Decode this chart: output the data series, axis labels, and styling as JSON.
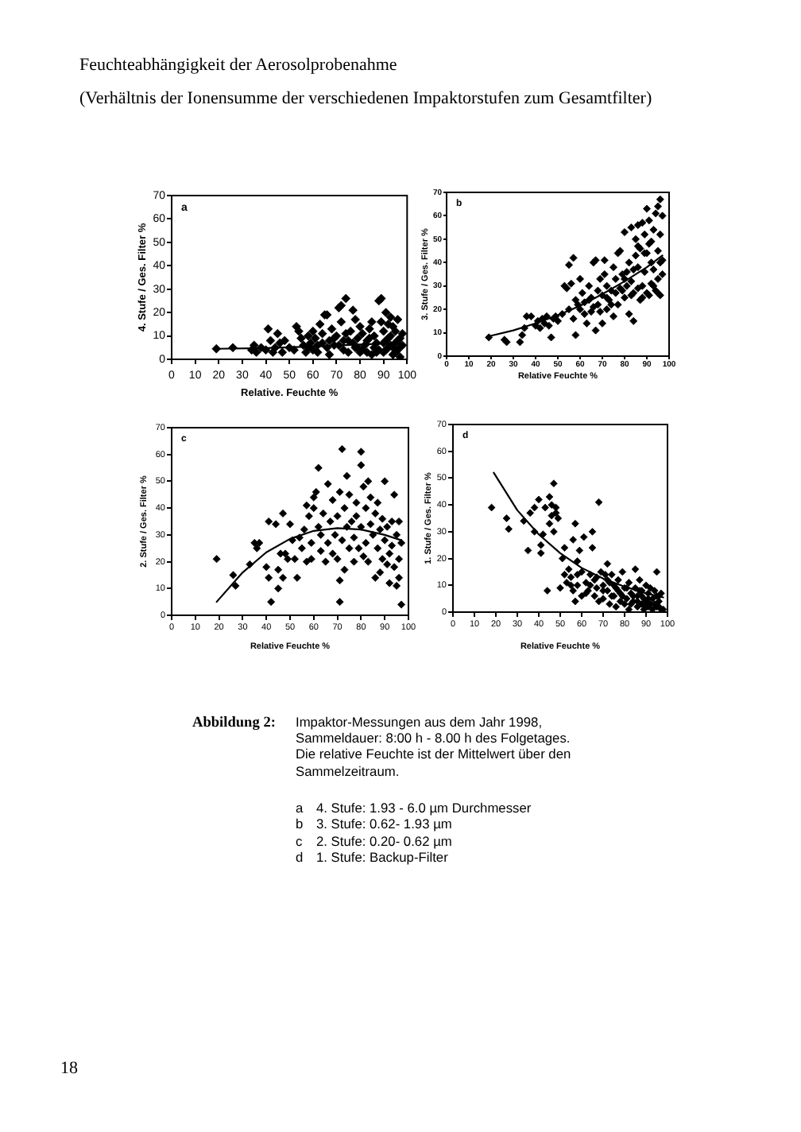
{
  "chart_data": [
    {
      "type": "scatter",
      "title": "Feuchteabhängigkeit der Aerosolprobenahme",
      "subtitle": "(Verhältnis der Ionensumme der verschiedenen Impaktorstufen zum Gesamtfilter)",
      "xlabel": "Relative. Feuchte %",
      "ylabel": "4. Stufe / Ges. Filter %",
      "annotations": [
        "a",
        "4. Stufe: 1.93 - 6.0 µm Durchmesser"
      ],
      "series": [
        {
          "color": "#000000",
          "x": [
            19,
            26,
            34,
            35,
            36,
            38,
            40,
            41,
            42,
            43,
            44,
            45,
            46,
            47,
            48,
            50,
            52,
            53,
            54,
            55,
            56,
            57,
            58,
            59,
            60,
            60,
            61,
            62,
            63,
            64,
            65,
            66,
            66,
            67,
            68,
            69,
            70,
            71,
            72,
            72,
            73,
            74,
            74,
            75,
            76,
            77,
            78,
            78,
            79,
            80,
            80,
            81,
            82,
            83,
            84,
            85,
            85,
            86,
            87,
            88,
            88,
            89,
            89,
            90,
            90,
            91,
            91,
            92,
            92,
            93,
            93,
            94,
            94,
            95,
            95,
            96,
            96,
            97,
            97,
            98,
            98,
            58,
            62,
            64,
            67,
            69,
            71,
            73,
            75,
            77,
            79,
            81,
            83,
            84,
            86,
            87,
            90,
            91,
            92,
            93,
            94,
            95,
            96,
            97
          ],
          "values": [
            4.5,
            5,
            4,
            6,
            3,
            5,
            4,
            13,
            8,
            3,
            5,
            11,
            7,
            3,
            8,
            5,
            4,
            14,
            12,
            9,
            6,
            3,
            10,
            7,
            12,
            4,
            9,
            6,
            15,
            11,
            19,
            19,
            5,
            8,
            13,
            6,
            10,
            22,
            23,
            16,
            4,
            26,
            11,
            8,
            12,
            21,
            5,
            17,
            9,
            3,
            14,
            11,
            6,
            8,
            13,
            2,
            16,
            10,
            7,
            4,
            25,
            26,
            16,
            12,
            3,
            20,
            8,
            15,
            5,
            18,
            10,
            2,
            14,
            7,
            12,
            17,
            4,
            9,
            1,
            6,
            11,
            5,
            3,
            7,
            2,
            9,
            6,
            8,
            3,
            7,
            5,
            4,
            3,
            9,
            5,
            3,
            7,
            4,
            9,
            6,
            5,
            3,
            8,
            5
          ]
        },
        {
          "type": "line",
          "color": "#000000",
          "marker": "none",
          "x": [
            19,
            40,
            60,
            80,
            97
          ],
          "values": [
            4.5,
            4.8,
            5.5,
            6.3,
            7
          ]
        }
      ],
      "xlim": [
        0,
        100
      ],
      "ylim": [
        0,
        70
      ],
      "xticks": [
        0,
        10,
        20,
        30,
        40,
        50,
        60,
        70,
        80,
        90,
        100
      ],
      "yticks": [
        0,
        10,
        20,
        30,
        40,
        50,
        60,
        70
      ],
      "grid": false,
      "legend": false,
      "marker": "diamond"
    },
    {
      "type": "scatter",
      "xlabel": "Relative Feuchte %",
      "ylabel": "3. Stufe / Ges. Filter %",
      "annotations": [
        "b",
        "3. Stufe: 0.62- 1.93 µm"
      ],
      "series": [
        {
          "color": "#000000",
          "x": [
            19,
            26,
            27,
            33,
            34,
            35,
            36,
            38,
            40,
            41,
            42,
            43,
            44,
            45,
            46,
            47,
            48,
            49,
            50,
            52,
            53,
            54,
            55,
            55,
            56,
            57,
            57,
            58,
            58,
            59,
            60,
            60,
            61,
            62,
            63,
            64,
            65,
            65,
            66,
            67,
            67,
            68,
            68,
            69,
            70,
            70,
            71,
            71,
            72,
            72,
            73,
            74,
            75,
            75,
            76,
            77,
            77,
            78,
            78,
            79,
            80,
            80,
            81,
            81,
            82,
            82,
            83,
            83,
            84,
            84,
            85,
            85,
            86,
            86,
            87,
            87,
            88,
            88,
            89,
            89,
            90,
            90,
            90,
            91,
            91,
            92,
            92,
            93,
            93,
            94,
            94,
            95,
            95,
            95,
            96,
            96,
            96,
            97,
            97,
            97,
            62,
            64,
            66,
            69,
            72,
            74,
            76,
            79,
            83,
            86,
            88,
            91,
            93,
            95,
            96,
            92,
            89,
            86,
            84,
            80
          ],
          "values": [
            8,
            7,
            6,
            6,
            9,
            12,
            17,
            17,
            13,
            15,
            12,
            16,
            14,
            17,
            13,
            8,
            16,
            17,
            15,
            18,
            30,
            29,
            39,
            20,
            31,
            16,
            42,
            9,
            24,
            22,
            33,
            20,
            27,
            23,
            14,
            30,
            25,
            19,
            40,
            41,
            11,
            22,
            28,
            33,
            26,
            14,
            35,
            41,
            20,
            30,
            24,
            28,
            38,
            17,
            33,
            44,
            22,
            45,
            29,
            35,
            53,
            25,
            36,
            30,
            18,
            40,
            55,
            32,
            15,
            27,
            43,
            50,
            56,
            38,
            24,
            46,
            57,
            30,
            52,
            36,
            63,
            27,
            44,
            48,
            58,
            31,
            40,
            37,
            54,
            28,
            61,
            45,
            64,
            33,
            67,
            52,
            26,
            60,
            41,
            35,
            18,
            24,
            21,
            19,
            25,
            22,
            27,
            28,
            26,
            29,
            25,
            26,
            30,
            27,
            40,
            49,
            44,
            47,
            37,
            33
          ]
        },
        {
          "type": "line",
          "color": "#000000",
          "marker": "none",
          "x": [
            19,
            30,
            40,
            50,
            60,
            70,
            80,
            90,
            97
          ],
          "values": [
            8.5,
            11,
            14,
            17.5,
            21.5,
            26.5,
            32,
            38,
            43
          ]
        }
      ],
      "xlim": [
        0,
        100
      ],
      "ylim": [
        0,
        70
      ],
      "xticks": [
        0,
        10,
        20,
        30,
        40,
        50,
        60,
        70,
        80,
        90,
        100
      ],
      "yticks": [
        0,
        10,
        20,
        30,
        40,
        50,
        60,
        70
      ],
      "grid": false,
      "legend": false,
      "marker": "diamond"
    },
    {
      "type": "scatter",
      "xlabel": "Relative Feuchte %",
      "ylabel": "2. Stufe / Ges. Filter %",
      "annotations": [
        "c",
        "2. Stufe: 0.20- 0.62 µm"
      ],
      "series": [
        {
          "color": "#000000",
          "x": [
            19,
            26,
            27,
            33,
            35,
            36,
            37,
            40,
            41,
            41,
            42,
            44,
            45,
            45,
            46,
            47,
            47,
            48,
            49,
            50,
            51,
            52,
            53,
            54,
            55,
            56,
            57,
            57,
            58,
            59,
            59,
            60,
            60,
            61,
            62,
            62,
            63,
            63,
            64,
            65,
            66,
            66,
            67,
            68,
            68,
            69,
            70,
            70,
            71,
            71,
            71,
            72,
            72,
            73,
            73,
            74,
            74,
            75,
            75,
            76,
            77,
            77,
            78,
            78,
            79,
            80,
            80,
            80,
            81,
            81,
            82,
            82,
            83,
            83,
            84,
            84,
            85,
            86,
            86,
            87,
            87,
            88,
            88,
            89,
            89,
            90,
            90,
            91,
            91,
            92,
            92,
            93,
            93,
            94,
            94,
            95,
            95,
            96,
            96,
            96,
            97,
            97
          ],
          "values": [
            21,
            15,
            11,
            19,
            27,
            25,
            27,
            18,
            35,
            14,
            5,
            34,
            10,
            17,
            23,
            38,
            14,
            23,
            21,
            34,
            28,
            21,
            14,
            29,
            25,
            32,
            20,
            41,
            37,
            27,
            21,
            40,
            44,
            46,
            55,
            33,
            24,
            30,
            38,
            20,
            49,
            27,
            35,
            23,
            43,
            30,
            37,
            21,
            46,
            13,
            5,
            62,
            28,
            40,
            17,
            52,
            33,
            25,
            45,
            35,
            20,
            29,
            42,
            37,
            25,
            61,
            56,
            33,
            48,
            22,
            40,
            27,
            50,
            20,
            34,
            44,
            30,
            14,
            38,
            25,
            42,
            16,
            32,
            21,
            36,
            50,
            28,
            19,
            33,
            23,
            12,
            35,
            26,
            45,
            18,
            11,
            30,
            35,
            21,
            14,
            4,
            27
          ]
        },
        {
          "type": "line",
          "color": "#000000",
          "marker": "none",
          "x": [
            19,
            30,
            40,
            50,
            60,
            70,
            80,
            90,
            97
          ],
          "values": [
            5,
            16,
            23.5,
            28.5,
            31.5,
            32.5,
            32,
            30,
            28
          ]
        }
      ],
      "xlim": [
        0,
        100
      ],
      "ylim": [
        0,
        70
      ],
      "xticks": [
        0,
        10,
        20,
        30,
        40,
        50,
        60,
        70,
        80,
        90,
        100
      ],
      "yticks": [
        0,
        10,
        20,
        30,
        40,
        50,
        60,
        70
      ],
      "grid": false,
      "legend": false,
      "marker": "diamond"
    },
    {
      "type": "scatter",
      "xlabel": "Relative Feuchte %",
      "ylabel": "1. Stufe / Ges. Filter %",
      "annotations": [
        "d",
        "1. Stufe: Backup-Filter",
        "Abbildung 2:",
        "Impaktor-Messungen aus dem Jahr 1998, Sammeldauer: 8:00 h - 8.00 h des Folgetages. Die relative Feuchte ist der Mittelwert über den Sammelzeitraum.",
        "18"
      ],
      "series": [
        {
          "color": "#000000",
          "x": [
            18,
            25,
            26,
            33,
            35,
            36,
            38,
            38,
            40,
            41,
            41,
            42,
            43,
            44,
            45,
            45,
            46,
            46,
            47,
            47,
            48,
            48,
            49,
            50,
            51,
            52,
            52,
            53,
            54,
            55,
            56,
            56,
            57,
            57,
            58,
            58,
            59,
            60,
            60,
            61,
            62,
            63,
            64,
            65,
            65,
            66,
            66,
            67,
            68,
            68,
            69,
            70,
            70,
            71,
            72,
            72,
            73,
            73,
            74,
            75,
            76,
            76,
            77,
            78,
            78,
            79,
            80,
            80,
            81,
            82,
            82,
            83,
            84,
            85,
            85,
            86,
            86,
            87,
            88,
            88,
            89,
            89,
            90,
            90,
            91,
            91,
            92,
            92,
            93,
            93,
            94,
            94,
            95,
            95,
            96,
            96,
            97,
            97,
            98,
            55,
            58,
            62,
            64,
            67,
            70,
            72,
            74,
            75,
            77,
            79,
            81,
            83,
            84,
            86,
            87,
            88,
            90,
            91,
            95,
            96
          ],
          "values": [
            39,
            35,
            31,
            34,
            23,
            37,
            39,
            30,
            42,
            25,
            22,
            29,
            39,
            8,
            43,
            33,
            40,
            36,
            48,
            30,
            39,
            37,
            35,
            9,
            20,
            14,
            24,
            11,
            16,
            13,
            27,
            8,
            4,
            33,
            19,
            10,
            23,
            6,
            15,
            28,
            11,
            8,
            14,
            24,
            30,
            6,
            12,
            9,
            41,
            4,
            15,
            10,
            5,
            14,
            8,
            18,
            3,
            11,
            14,
            6,
            9,
            2,
            12,
            4,
            7,
            15,
            9,
            3,
            5,
            11,
            1,
            7,
            4,
            16,
            9,
            2,
            6,
            12,
            3,
            8,
            5,
            1,
            10,
            4,
            7,
            2,
            3,
            9,
            1,
            5,
            8,
            3,
            15,
            6,
            2,
            4,
            1,
            7,
            1,
            10,
            14,
            7,
            10,
            13,
            8,
            12,
            6,
            10,
            8,
            6,
            9,
            3,
            6,
            4,
            8,
            6,
            2,
            5,
            2,
            6
          ]
        },
        {
          "type": "line",
          "color": "#000000",
          "marker": "none",
          "x": [
            19,
            30,
            40,
            50,
            60,
            70,
            80,
            90,
            98
          ],
          "values": [
            52,
            38,
            29,
            22,
            16.5,
            12.5,
            9.5,
            7,
            5.5
          ]
        }
      ],
      "xlim": [
        0,
        100
      ],
      "ylim": [
        0,
        70
      ],
      "xticks": [
        0,
        10,
        20,
        30,
        40,
        50,
        60,
        70,
        80,
        90,
        100
      ],
      "yticks": [
        0,
        10,
        20,
        30,
        40,
        50,
        60,
        70
      ],
      "grid": false,
      "legend": false,
      "marker": "diamond"
    }
  ]
}
